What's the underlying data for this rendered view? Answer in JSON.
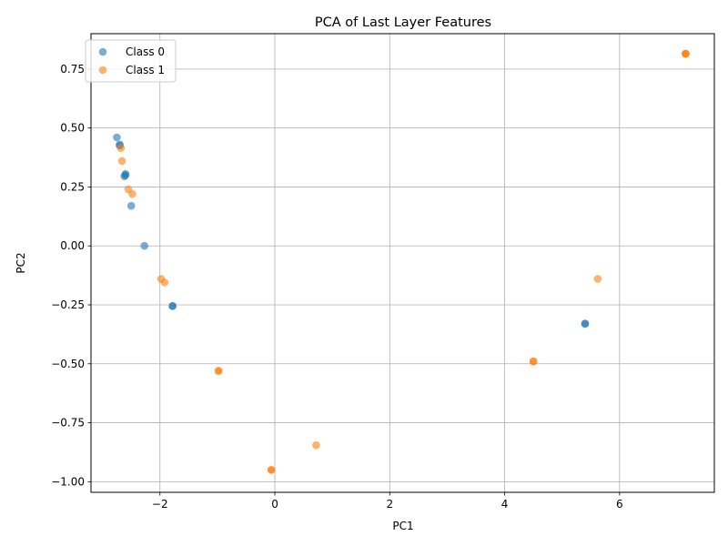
{
  "chart_data": {
    "type": "scatter",
    "title": "PCA of Last Layer Features",
    "xlabel": "PC1",
    "ylabel": "PC2",
    "xlim": [
      -3.2,
      7.65
    ],
    "ylim": [
      -1.045,
      0.9
    ],
    "xticks": [
      -2,
      0,
      2,
      4,
      6
    ],
    "yticks": [
      -1.0,
      -0.75,
      -0.5,
      -0.25,
      0.0,
      0.25,
      0.5,
      0.75
    ],
    "xtick_labels": [
      "−2",
      "0",
      "2",
      "4",
      "6"
    ],
    "ytick_labels": [
      "−1.00",
      "−0.75",
      "−0.50",
      "−0.25",
      "0.00",
      "0.25",
      "0.50",
      "0.75"
    ],
    "grid": true,
    "legend_position": "upper-left",
    "series": [
      {
        "name": "Class 0",
        "color": "#1f77b4",
        "alpha": 0.6,
        "points": [
          {
            "x": -2.75,
            "y": 0.46
          },
          {
            "x": -2.7,
            "y": 0.43
          },
          {
            "x": -2.7,
            "y": 0.425
          },
          {
            "x": -2.6,
            "y": 0.305
          },
          {
            "x": -2.62,
            "y": 0.295
          },
          {
            "x": -2.6,
            "y": 0.3
          },
          {
            "x": -2.5,
            "y": 0.17
          },
          {
            "x": -2.27,
            "y": 0.0
          },
          {
            "x": -1.78,
            "y": -0.255
          },
          {
            "x": -1.78,
            "y": -0.255
          },
          {
            "x": 5.4,
            "y": -0.33
          },
          {
            "x": 5.4,
            "y": -0.33
          }
        ]
      },
      {
        "name": "Class 1",
        "color": "#ff7f0e",
        "alpha": 0.6,
        "points": [
          {
            "x": -2.68,
            "y": 0.415
          },
          {
            "x": -2.66,
            "y": 0.36
          },
          {
            "x": -2.55,
            "y": 0.24
          },
          {
            "x": -2.48,
            "y": 0.22
          },
          {
            "x": -1.98,
            "y": -0.14
          },
          {
            "x": -1.92,
            "y": -0.155
          },
          {
            "x": -0.98,
            "y": -0.53
          },
          {
            "x": -0.98,
            "y": -0.53
          },
          {
            "x": -0.06,
            "y": -0.95
          },
          {
            "x": -0.06,
            "y": -0.95
          },
          {
            "x": 0.72,
            "y": -0.845
          },
          {
            "x": 4.5,
            "y": -0.49
          },
          {
            "x": 4.5,
            "y": -0.49
          },
          {
            "x": 5.62,
            "y": -0.14
          },
          {
            "x": 7.15,
            "y": 0.815
          },
          {
            "x": 7.15,
            "y": 0.815
          },
          {
            "x": 7.15,
            "y": 0.815
          }
        ]
      }
    ]
  }
}
